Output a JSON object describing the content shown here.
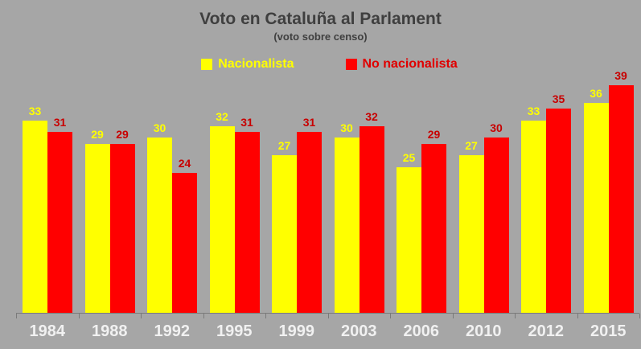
{
  "title": "Voto en Cataluña al Parlament",
  "subtitle": "(voto sobre censo)",
  "colors": {
    "background": "#a6a6a6",
    "title_text": "#3f3f3f",
    "axis_line": "#7a7a7a",
    "x_label_text": "#f1f1f1",
    "nacionalista": "#ffff00",
    "no_nacionalista": "#ff0000",
    "nacionalista_label": "#ffff00",
    "no_nacionalista_label": "#c80000",
    "legend_nacionalista_text": "#ffff00",
    "legend_no_nacionalista_text": "#e00000"
  },
  "legend": [
    {
      "label": "Nacionalista"
    },
    {
      "label": "No nacionalista"
    }
  ],
  "chart_data": {
    "type": "bar",
    "title": "Voto en Cataluña al Parlament",
    "subtitle": "(voto sobre censo)",
    "categories": [
      "1984",
      "1988",
      "1992",
      "1995",
      "1999",
      "2003",
      "2006",
      "2010",
      "2012",
      "2015"
    ],
    "series": [
      {
        "name": "Nacionalista",
        "color": "#ffff00",
        "label_color": "#ffff00",
        "values": [
          33,
          29,
          30,
          32,
          27,
          30,
          25,
          27,
          33,
          36
        ]
      },
      {
        "name": "No nacionalista",
        "color": "#ff0000",
        "label_color": "#c80000",
        "values": [
          31,
          29,
          24,
          31,
          31,
          32,
          29,
          30,
          35,
          39
        ]
      }
    ],
    "ylim": [
      0,
      40
    ],
    "grid": false,
    "y_axis_visible": false,
    "legend_position": "top",
    "data_labels": "above-bars"
  }
}
